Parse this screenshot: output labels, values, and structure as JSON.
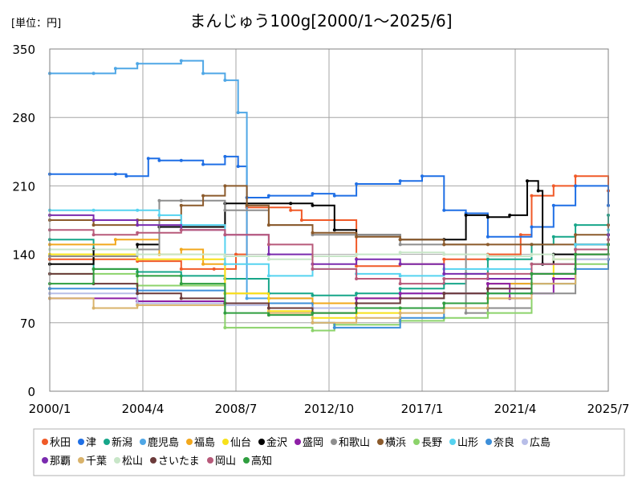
{
  "chart_data": {
    "type": "line",
    "title": "まんじゅう100g[2000/1～2025/6]",
    "unit_label": "[単位：円]",
    "xlabel": "",
    "ylabel": "",
    "ylim": [
      0,
      350
    ],
    "xlim": [
      2000.0,
      2025.5
    ],
    "y_ticks": [
      0,
      70,
      140,
      210,
      280,
      350
    ],
    "x_ticks": [
      {
        "value": 2000.0,
        "label": "2000/1"
      },
      {
        "value": 2004.25,
        "label": "2004/4"
      },
      {
        "value": 2008.5,
        "label": "2008/7"
      },
      {
        "value": 2012.75,
        "label": "2012/10"
      },
      {
        "value": 2017.0,
        "label": "2017/1"
      },
      {
        "value": 2021.25,
        "label": "2021/4"
      },
      {
        "value": 2025.5,
        "label": "2025/7"
      }
    ],
    "grid": true,
    "legend_position": "bottom",
    "series": [
      {
        "name": "秋田",
        "color": "#F05A28",
        "x": [
          2000,
          2002,
          2004,
          2006,
          2007.5,
          2008.5,
          2009,
          2011,
          2011.5,
          2014,
          2016,
          2018,
          2020,
          2021.5,
          2022,
          2023,
          2024,
          2025.5
        ],
        "values": [
          135,
          135,
          133,
          125,
          125,
          140,
          188,
          185,
          175,
          128,
          130,
          135,
          140,
          160,
          200,
          210,
          220,
          205
        ]
      },
      {
        "name": "津",
        "color": "#1F6FE5",
        "x": [
          2000,
          2003,
          2003.5,
          2004.5,
          2005,
          2006,
          2007,
          2008,
          2008.6,
          2009,
          2010,
          2012,
          2013,
          2014,
          2016,
          2017,
          2018,
          2019,
          2020,
          2022,
          2023,
          2024,
          2025.5
        ],
        "values": [
          222,
          222,
          220,
          238,
          236,
          236,
          232,
          240,
          230,
          198,
          200,
          202,
          200,
          212,
          215,
          220,
          185,
          182,
          158,
          168,
          190,
          210,
          190
        ]
      },
      {
        "name": "新潟",
        "color": "#17A689",
        "x": [
          2000,
          2002,
          2004,
          2006,
          2008,
          2010,
          2012,
          2014,
          2016,
          2018,
          2019,
          2020,
          2022,
          2023,
          2024,
          2025.5
        ],
        "values": [
          155,
          125,
          122,
          118,
          115,
          100,
          98,
          100,
          105,
          110,
          120,
          135,
          150,
          158,
          170,
          180
        ]
      },
      {
        "name": "鹿児島",
        "color": "#4FA7E6",
        "x": [
          2000,
          2002,
          2003,
          2004,
          2006,
          2007,
          2008,
          2008.6,
          2009,
          2012,
          2014,
          2016,
          2018,
          2020,
          2022,
          2024,
          2025.5
        ],
        "values": [
          325,
          325,
          330,
          335,
          338,
          325,
          318,
          285,
          95,
          85,
          95,
          100,
          100,
          110,
          130,
          150,
          160
        ]
      },
      {
        "name": "福島",
        "color": "#F2A81D",
        "x": [
          2000,
          2003,
          2005,
          2006,
          2007,
          2008,
          2010,
          2012,
          2014,
          2016,
          2018,
          2020,
          2022,
          2024,
          2025.5
        ],
        "values": [
          150,
          155,
          140,
          145,
          130,
          100,
          95,
          90,
          95,
          95,
          100,
          110,
          130,
          150,
          155
        ]
      },
      {
        "name": "仙台",
        "color": "#F7E11A",
        "x": [
          2000,
          2004,
          2008,
          2010,
          2012,
          2014,
          2016,
          2018,
          2020,
          2022,
          2023,
          2024,
          2025.5
        ],
        "values": [
          140,
          135,
          100,
          82,
          75,
          80,
          85,
          90,
          95,
          110,
          135,
          145,
          160
        ]
      },
      {
        "name": "金沢",
        "color": "#000000",
        "x": [
          2000,
          2002,
          2004,
          2005,
          2008,
          2011,
          2012,
          2013,
          2014,
          2016,
          2018,
          2019,
          2020,
          2021,
          2021.8,
          2022.3,
          2022.5,
          2023,
          2024,
          2025.5
        ],
        "values": [
          130,
          145,
          150,
          168,
          192,
          192,
          190,
          165,
          160,
          155,
          155,
          180,
          178,
          180,
          215,
          205,
          130,
          140,
          150,
          160
        ]
      },
      {
        "name": "盛岡",
        "color": "#8E1FA6",
        "x": [
          2000,
          2004,
          2008,
          2012,
          2014,
          2016,
          2018,
          2020,
          2021,
          2022,
          2023,
          2024,
          2025.5
        ],
        "values": [
          95,
          92,
          90,
          85,
          95,
          100,
          100,
          110,
          95,
          100,
          115,
          140,
          150
        ]
      },
      {
        "name": "和歌山",
        "color": "#8E8E8E",
        "x": [
          2000,
          2004,
          2005,
          2006,
          2008,
          2010,
          2012,
          2014,
          2016,
          2018,
          2019,
          2020,
          2022,
          2024,
          2025.5
        ],
        "values": [
          138,
          145,
          195,
          195,
          185,
          170,
          160,
          160,
          150,
          150,
          80,
          85,
          100,
          135,
          150
        ]
      },
      {
        "name": "横浜",
        "color": "#8B5A2B",
        "x": [
          2000,
          2002,
          2004,
          2006,
          2007,
          2008,
          2009,
          2010,
          2012,
          2014,
          2016,
          2018,
          2020,
          2022,
          2024,
          2025.5
        ],
        "values": [
          175,
          170,
          175,
          190,
          200,
          210,
          190,
          170,
          162,
          158,
          155,
          150,
          150,
          150,
          160,
          170
        ]
      },
      {
        "name": "長野",
        "color": "#8CD36B",
        "x": [
          2000,
          2004,
          2008,
          2012,
          2013,
          2016,
          2018,
          2020,
          2022,
          2024,
          2025.5
        ],
        "values": [
          120,
          108,
          65,
          62,
          68,
          72,
          75,
          80,
          110,
          130,
          140
        ]
      },
      {
        "name": "山形",
        "color": "#56D3F0",
        "x": [
          2000,
          2002,
          2004,
          2005,
          2006,
          2008,
          2010,
          2012,
          2014,
          2016,
          2018,
          2020,
          2022,
          2024,
          2025.5
        ],
        "values": [
          185,
          185,
          185,
          180,
          170,
          130,
          118,
          125,
          120,
          118,
          125,
          125,
          130,
          150,
          165
        ]
      },
      {
        "name": "奈良",
        "color": "#3D8FD9",
        "x": [
          2000,
          2004,
          2008,
          2012,
          2013,
          2016,
          2018,
          2020,
          2022,
          2024,
          2025.5
        ],
        "values": [
          105,
          103,
          90,
          70,
          65,
          75,
          90,
          100,
          110,
          125,
          135
        ]
      },
      {
        "name": "広島",
        "color": "#B8BEE8",
        "x": [
          2000,
          2004,
          2008,
          2010,
          2012,
          2014,
          2016,
          2018,
          2020,
          2022,
          2024,
          2025.5
        ],
        "values": [
          100,
          90,
          88,
          85,
          85,
          90,
          95,
          100,
          105,
          120,
          135,
          150
        ]
      },
      {
        "name": "那覇",
        "color": "#7A2BAF",
        "x": [
          2000,
          2002,
          2004,
          2006,
          2008,
          2010,
          2012,
          2014,
          2016,
          2018,
          2020,
          2022,
          2024,
          2025.5
        ],
        "values": [
          180,
          175,
          170,
          165,
          160,
          140,
          130,
          135,
          130,
          120,
          115,
          120,
          140,
          160
        ]
      },
      {
        "name": "千葉",
        "color": "#D9B36B",
        "x": [
          2000,
          2002,
          2004,
          2008,
          2010,
          2012,
          2014,
          2016,
          2018,
          2020,
          2022,
          2024,
          2025.5
        ],
        "values": [
          95,
          85,
          88,
          90,
          80,
          70,
          75,
          80,
          85,
          95,
          110,
          140,
          150
        ]
      },
      {
        "name": "松山",
        "color": "#C8E6C8",
        "x": [
          2000,
          2004,
          2008,
          2010,
          2012,
          2014,
          2016,
          2018,
          2020,
          2022,
          2023,
          2024,
          2025.5
        ],
        "values": [
          145,
          140,
          138,
          135,
          138,
          140,
          142,
          140,
          138,
          140,
          135,
          145,
          150
        ]
      },
      {
        "name": "さいたま",
        "color": "#6B3A3A",
        "x": [
          2000,
          2002,
          2004,
          2006,
          2008,
          2010,
          2012,
          2014,
          2016,
          2018,
          2020,
          2022,
          2024,
          2025.5
        ],
        "values": [
          120,
          110,
          100,
          95,
          90,
          85,
          80,
          90,
          95,
          100,
          105,
          120,
          140,
          150
        ]
      },
      {
        "name": "岡山",
        "color": "#B85A7A",
        "x": [
          2000,
          2002,
          2004,
          2006,
          2008,
          2010,
          2012,
          2014,
          2016,
          2018,
          2020,
          2022,
          2024,
          2025.5
        ],
        "values": [
          165,
          160,
          162,
          165,
          160,
          150,
          125,
          115,
          110,
          115,
          120,
          130,
          145,
          155
        ]
      },
      {
        "name": "高知",
        "color": "#2F9E3F",
        "x": [
          2000,
          2002,
          2004,
          2006,
          2008,
          2010,
          2012,
          2014,
          2016,
          2018,
          2020,
          2022,
          2024,
          2025.5
        ],
        "values": [
          110,
          125,
          118,
          110,
          80,
          78,
          80,
          85,
          85,
          90,
          100,
          120,
          140,
          150
        ]
      }
    ]
  }
}
